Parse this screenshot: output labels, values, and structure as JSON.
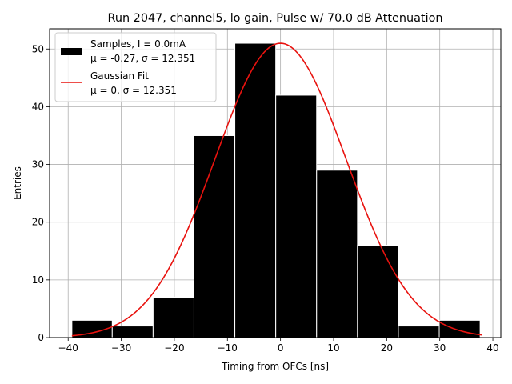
{
  "chart_data": {
    "type": "bar",
    "title": "Run 2047, channel5, lo gain, Pulse w/ 70.0 dB Attenuation",
    "xlabel": "Timing from OFCs [ns]",
    "ylabel": "Entries",
    "xlim": [
      -43.5,
      41.5
    ],
    "ylim": [
      0,
      53.5
    ],
    "xticks": [
      -40,
      -30,
      -20,
      -10,
      0,
      10,
      20,
      30,
      40
    ],
    "yticks": [
      0,
      10,
      20,
      30,
      40,
      50
    ],
    "grid": true,
    "legend_position": "top-left",
    "bins": [
      {
        "x0": -39.3,
        "x1": -31.7,
        "count": 3
      },
      {
        "x0": -31.7,
        "x1": -24.0,
        "count": 2
      },
      {
        "x0": -24.0,
        "x1": -16.3,
        "count": 7
      },
      {
        "x0": -16.3,
        "x1": -8.6,
        "count": 35
      },
      {
        "x0": -8.6,
        "x1": -0.9,
        "count": 51
      },
      {
        "x0": -0.9,
        "x1": 6.8,
        "count": 42
      },
      {
        "x0": 6.8,
        "x1": 14.5,
        "count": 29
      },
      {
        "x0": 14.5,
        "x1": 22.2,
        "count": 16
      },
      {
        "x0": 22.2,
        "x1": 29.9,
        "count": 2
      },
      {
        "x0": 29.9,
        "x1": 37.6,
        "count": 3
      }
    ],
    "fit": {
      "type": "gaussian",
      "mu": 0,
      "sigma": 12.351,
      "amplitude": 51,
      "x_range": [
        -39.3,
        37.9
      ]
    },
    "series": [
      {
        "name": "Samples, I = 0.0mA",
        "stats": "μ = -0.27, σ = 12.351",
        "color": "#000000",
        "kind": "histogram"
      },
      {
        "name": "Gaussian Fit",
        "stats": "μ = 0, σ = 12.351",
        "color": "#e8130f",
        "kind": "line"
      }
    ]
  }
}
